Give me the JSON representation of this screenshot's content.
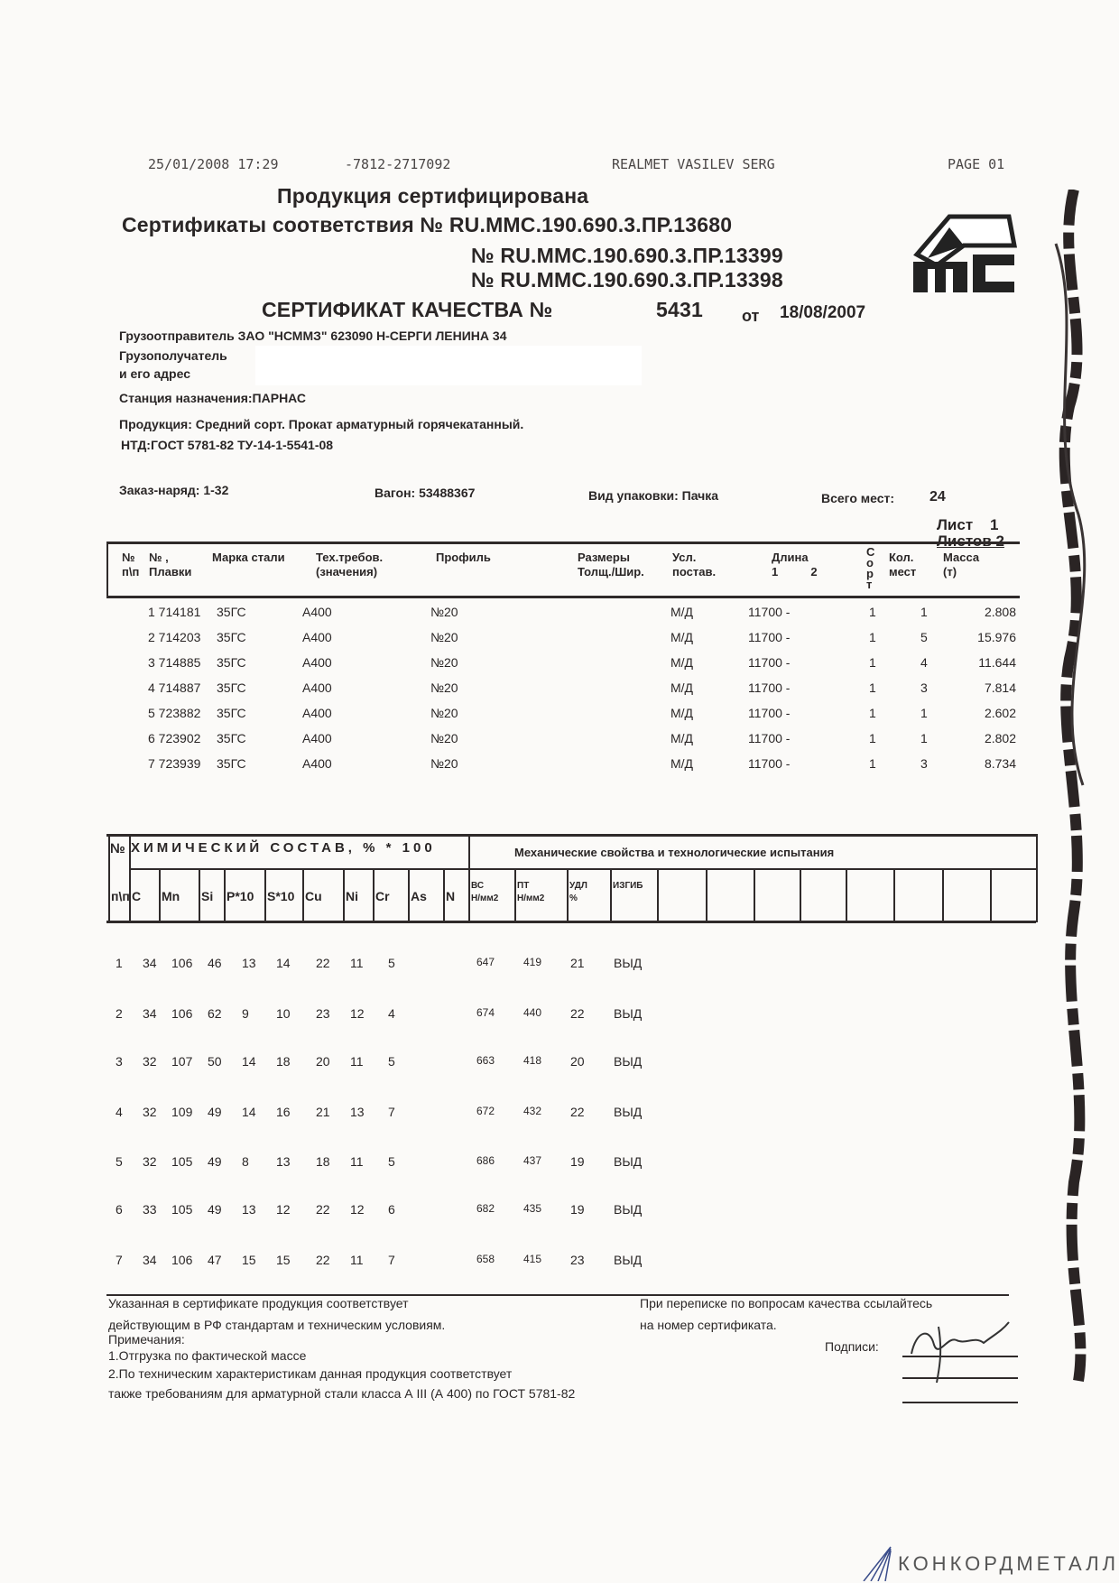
{
  "fax_header": {
    "datetime": "25/01/2008  17:29",
    "phone": "-7812-2717092",
    "sender": "REALMET VASILEV SERG",
    "page": "PAGE  01"
  },
  "certified": "Продукция сертифицирована",
  "conformity": {
    "label": "Сертификаты соответствия № RU.MMC.190.690.3.ПР.13680",
    "extra": [
      "№ RU.MMC.190.690.3.ПР.13399",
      "№ RU.MMC.190.690.3.ПР.13398"
    ]
  },
  "logo": {
    "text": "MC"
  },
  "quality": {
    "title": "СЕРТИФИКАТ  КАЧЕСТВА №",
    "number": "5431",
    "from": "от",
    "date": "18/08/2007"
  },
  "shipper": "Грузоотправитель ЗАО \"НСММЗ\"  623090 Н-СЕРГИ ЛЕНИНА 34",
  "consignee": "Грузополучатель",
  "address": "и его адрес",
  "station": "Станция назначения:ПАРНАС",
  "product": "Продукция:  Средний сорт. Прокат арматурный горячекатанный.",
  "ntd": "НТД:ГОСТ 5781-82  ТУ-14-1-5541-08",
  "order": "Заказ-наряд:  1-32",
  "wagon": "Вагон: 53488367",
  "packing": "Вид упаковки: Пачка",
  "places_label": "Всего мест:",
  "places": "24",
  "sheet": "Лист    1",
  "sheets": "Листов 2",
  "table1": {
    "headers": [
      "№\nп\\п",
      "№ ,\nПлавки",
      "Марка стали",
      "Тех.требов.\n(значения)",
      "Профиль",
      "Размеры\nТолщ./Шир.",
      "Усл.\nпостав.",
      "Длина\n1          2",
      "С\nо\nр\nт",
      "Кол.\nмест",
      "Масса\n(т)"
    ],
    "rows": [
      [
        "1 714181",
        "35ГС",
        "А400",
        "№20",
        "М/Д",
        "11700 -",
        "1",
        "1",
        "2.808"
      ],
      [
        "2 714203",
        "35ГС",
        "А400",
        "№20",
        "М/Д",
        "11700 -",
        "1",
        "5",
        "15.976"
      ],
      [
        "3 714885",
        "35ГС",
        "А400",
        "№20",
        "М/Д",
        "11700 -",
        "1",
        "4",
        "11.644"
      ],
      [
        "4 714887",
        "35ГС",
        "А400",
        "№20",
        "М/Д",
        "11700 -",
        "1",
        "3",
        "7.814"
      ],
      [
        "5 723882",
        "35ГС",
        "А400",
        "№20",
        "М/Д",
        "11700 -",
        "1",
        "1",
        "2.602"
      ],
      [
        "6 723902",
        "35ГС",
        "А400",
        "№20",
        "М/Д",
        "11700 -",
        "1",
        "1",
        "2.802"
      ],
      [
        "7 723939",
        "35ГС",
        "А400",
        "№20",
        "М/Д",
        "11700 -",
        "1",
        "3",
        "8.734"
      ]
    ]
  },
  "table2": {
    "no_label": "№",
    "chem_title": "ХИМИЧЕСКИЙ   СОСТАВ, % * 100",
    "mech_title": "Механические  свойства  и технологические  испытания",
    "headers": [
      "п\\п",
      "C",
      "Mn",
      "Si",
      "P*10",
      "S*10",
      "Cu",
      "Ni",
      "Cr",
      "As",
      "N",
      "ВС\nН/мм2",
      "ПТ\nН/мм2",
      "УДЛ\n%",
      "ИЗГИБ"
    ],
    "rows": [
      [
        "1",
        "34",
        "106",
        "46",
        "13",
        "14",
        "22",
        "11",
        "5",
        "",
        "",
        "647",
        "419",
        "21",
        "ВЫД"
      ],
      [
        "2",
        "34",
        "106",
        "62",
        "9",
        "10",
        "23",
        "12",
        "4",
        "",
        "",
        "674",
        "440",
        "22",
        "ВЫД"
      ],
      [
        "3",
        "32",
        "107",
        "50",
        "14",
        "18",
        "20",
        "11",
        "5",
        "",
        "",
        "663",
        "418",
        "20",
        "ВЫД"
      ],
      [
        "4",
        "32",
        "109",
        "49",
        "14",
        "16",
        "21",
        "13",
        "7",
        "",
        "",
        "672",
        "432",
        "22",
        "ВЫД"
      ],
      [
        "5",
        "32",
        "105",
        "49",
        "8",
        "13",
        "18",
        "11",
        "5",
        "",
        "",
        "686",
        "437",
        "19",
        "ВЫД"
      ],
      [
        "6",
        "33",
        "105",
        "49",
        "13",
        "12",
        "22",
        "12",
        "6",
        "",
        "",
        "682",
        "435",
        "19",
        "ВЫД"
      ],
      [
        "7",
        "34",
        "106",
        "47",
        "15",
        "15",
        "22",
        "11",
        "7",
        "",
        "",
        "658",
        "415",
        "23",
        "ВЫД"
      ]
    ]
  },
  "footer": {
    "left": [
      "Указанная в сертификате продукция соответствует",
      "действующим в РФ стандартам и техническим условиям.",
      "Примечания:",
      "1.Отгрузка по фактической массе",
      "2.По техническим характеристикам данная продукция соответствует",
      "также требованиям для арматурной стали класса А III (А 400) по ГОСТ 5781-82"
    ],
    "right": [
      "При переписке по вопросам качества ссылайтесь",
      "на номер сертификата."
    ],
    "signatures": "Подписи:"
  },
  "watermark": "КОНКОРДМЕТАЛЛ"
}
